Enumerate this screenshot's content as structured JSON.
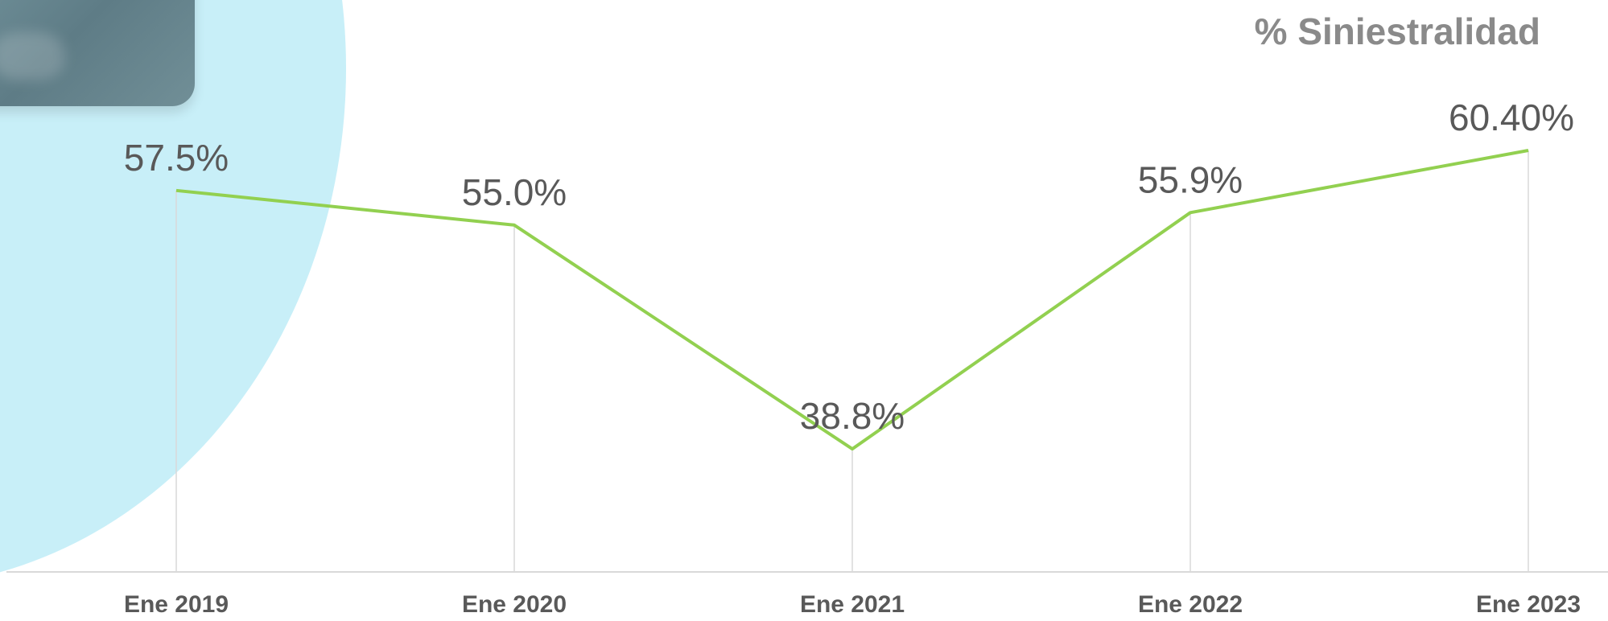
{
  "chart_data": {
    "type": "line",
    "title": "% Siniestralidad",
    "categories": [
      "Ene 2019",
      "Ene 2020",
      "Ene 2021",
      "Ene 2022",
      "Ene 2023"
    ],
    "series": [
      {
        "values": [
          57.5,
          55.0,
          38.8,
          55.9,
          60.4
        ],
        "data_labels": [
          "57.5%",
          "55.0%",
          "38.8%",
          "55.9%",
          "60.40%"
        ],
        "color": "#92d050"
      }
    ],
    "xlabel": "",
    "ylabel": "",
    "ylim": [
      20,
      65
    ],
    "grid": "vertical drop lines",
    "legend": "none"
  },
  "colors": {
    "line": "#92d050",
    "text": "#595959",
    "title": "#8a8a8a",
    "axis": "#d9d9d9",
    "background_shape": "#c8eff8"
  }
}
